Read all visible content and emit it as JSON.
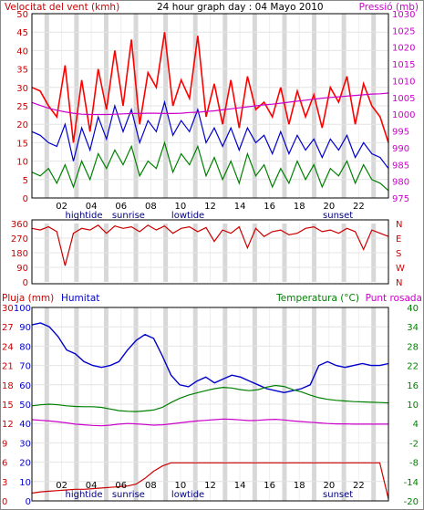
{
  "chart_data": [
    {
      "type": "line",
      "title": "24 hour graph day : 04 Mayo 2010",
      "ylabel": "Velocitat del vent (kmh)",
      "y2label": "Pressió (mb)",
      "ylim": [
        0,
        50
      ],
      "y2lim": [
        975,
        1030
      ],
      "yticks": [
        "0",
        "5",
        "10",
        "15",
        "20",
        "25",
        "30",
        "35",
        "40",
        "45",
        "50"
      ],
      "y2ticks": [
        "975",
        "980",
        "985",
        "990",
        "995",
        "1000",
        "1005",
        "1010",
        "1015",
        "1020",
        "1025",
        "1030"
      ],
      "xticks": [
        "02",
        "04",
        "06",
        "08",
        "10",
        "12",
        "14",
        "16",
        "18",
        "20",
        "22",
        ""
      ],
      "annotations": [
        {
          "text": "hightide",
          "hour": 3.5
        },
        {
          "text": "sunrise",
          "hour": 6.5
        },
        {
          "text": "lowtide",
          "hour": 10.5
        },
        {
          "text": "sunset",
          "hour": 20.6
        }
      ],
      "colors": {
        "gust": "#ff0000",
        "avg": "#0000cc",
        "min": "#008000",
        "pressure": "#cc00cc"
      },
      "series": [
        {
          "key": "gust",
          "values": [
            30,
            29,
            25,
            22,
            36,
            15,
            32,
            18,
            35,
            24,
            40,
            25,
            43,
            20,
            34,
            30,
            45,
            25,
            32,
            27,
            44,
            22,
            31,
            20,
            32,
            19,
            33,
            24,
            26,
            22,
            30,
            20,
            29,
            22,
            28,
            19,
            30,
            26,
            33,
            20,
            31,
            25,
            22,
            15
          ]
        },
        {
          "key": "avg",
          "values": [
            18,
            17,
            15,
            14,
            20,
            10,
            19,
            13,
            22,
            16,
            25,
            18,
            24,
            15,
            21,
            18,
            26,
            17,
            21,
            18,
            24,
            15,
            19,
            14,
            19,
            13,
            19,
            15,
            17,
            12,
            18,
            12,
            17,
            13,
            16,
            11,
            16,
            13,
            17,
            11,
            15,
            12,
            11,
            8
          ]
        },
        {
          "key": "min",
          "values": [
            7,
            6,
            8,
            4,
            9,
            3,
            10,
            5,
            12,
            8,
            13,
            9,
            14,
            6,
            10,
            8,
            15,
            7,
            12,
            9,
            14,
            6,
            11,
            5,
            10,
            4,
            12,
            6,
            9,
            3,
            8,
            4,
            10,
            5,
            9,
            3,
            8,
            6,
            10,
            4,
            9,
            5,
            4,
            2
          ]
        },
        {
          "key": "pressure",
          "values": [
            1003.5,
            1002.6,
            1001.8,
            1001.2,
            1000.7,
            1000.3,
            1000.0,
            999.9,
            999.9,
            999.9,
            1000.0,
            1000.1,
            1000.2,
            1000.2,
            1000.3,
            1000.3,
            1000.2,
            1000.2,
            1000.3,
            1000.5,
            1000.6,
            1000.8,
            1001.0,
            1001.3,
            1001.6,
            1001.9,
            1002.2,
            1002.5,
            1002.8,
            1003.0,
            1003.3,
            1003.6,
            1003.9,
            1004.2,
            1004.5,
            1004.8,
            1005.0,
            1005.2,
            1005.4,
            1005.6,
            1005.8,
            1006.0,
            1006.1,
            1006.3
          ]
        }
      ]
    },
    {
      "type": "line",
      "ylim": [
        0,
        360
      ],
      "yticks": [
        "0",
        "90",
        "180",
        "270",
        "360"
      ],
      "y2ticks": [
        "N",
        "W",
        "S",
        "E",
        "N"
      ],
      "colors": {
        "dir": "#cc0000"
      },
      "series": [
        {
          "key": "dir",
          "values": [
            330,
            320,
            340,
            310,
            100,
            300,
            330,
            320,
            350,
            300,
            345,
            330,
            340,
            310,
            350,
            320,
            345,
            300,
            330,
            340,
            310,
            335,
            250,
            320,
            300,
            340,
            210,
            330,
            280,
            310,
            320,
            290,
            300,
            330,
            340,
            310,
            320,
            300,
            330,
            310,
            200,
            320,
            300,
            280
          ]
        }
      ]
    },
    {
      "type": "line",
      "ylabel": "Pluja (mm)",
      "humidity_label": "Humitat",
      "y2label": "Temperatura (°C)",
      "dewpoint_label": "Punt rosada",
      "ylim": [
        0,
        100
      ],
      "rainlim": [
        0,
        30
      ],
      "y2lim": [
        -20,
        40
      ],
      "yticks": [
        "0",
        "10",
        "20",
        "30",
        "40",
        "50",
        "60",
        "70",
        "80",
        "90",
        "100"
      ],
      "rainticks": [
        "0",
        "3",
        "6",
        "9",
        "12",
        "15",
        "18",
        "21",
        "24",
        "27",
        "30"
      ],
      "y2ticks": [
        "-20",
        "-14",
        "-8",
        "-2",
        "4",
        "10",
        "16",
        "22",
        "28",
        "34",
        "40"
      ],
      "xticks": [
        "02",
        "04",
        "06",
        "08",
        "10",
        "12",
        "14",
        "16",
        "18",
        "20",
        "22",
        ""
      ],
      "annotations": [
        {
          "text": "hightide",
          "hour": 3.5
        },
        {
          "text": "sunrise",
          "hour": 6.5
        },
        {
          "text": "lowtide",
          "hour": 10.5
        },
        {
          "text": "sunset",
          "hour": 20.6
        }
      ],
      "colors": {
        "humidity": "#0000cc",
        "temperature": "#008000",
        "dewpoint": "#cc00cc",
        "rain": "#cc0000"
      },
      "series": [
        {
          "key": "humidity",
          "values": [
            91,
            92,
            90,
            85,
            78,
            76,
            72,
            70,
            69,
            70,
            72,
            78,
            83,
            86,
            84,
            75,
            65,
            60,
            59,
            62,
            64,
            61,
            63,
            65,
            64,
            62,
            60,
            58,
            57,
            56,
            57,
            58,
            60,
            70,
            72,
            70,
            69,
            70,
            71,
            70,
            70,
            71
          ]
        },
        {
          "key": "temperature",
          "values": [
            9.5,
            9.8,
            10.0,
            9.8,
            9.5,
            9.3,
            9.2,
            9.2,
            9.0,
            8.5,
            8.0,
            7.8,
            7.7,
            7.9,
            8.2,
            9.0,
            10.5,
            11.8,
            12.8,
            13.5,
            14.2,
            14.8,
            15.2,
            15.0,
            14.5,
            14.2,
            14.5,
            15.3,
            15.8,
            15.5,
            14.5,
            13.8,
            12.8,
            12.0,
            11.5,
            11.2,
            11.0,
            10.8,
            10.7,
            10.6,
            10.5,
            10.4
          ]
        },
        {
          "key": "dewpoint",
          "values": [
            5.2,
            5.0,
            4.8,
            4.5,
            4.2,
            3.8,
            3.6,
            3.4,
            3.3,
            3.5,
            3.8,
            4.0,
            3.9,
            3.7,
            3.5,
            3.6,
            3.9,
            4.2,
            4.5,
            4.8,
            5.0,
            5.2,
            5.4,
            5.3,
            5.1,
            4.9,
            5.0,
            5.2,
            5.3,
            5.1,
            4.8,
            4.6,
            4.4,
            4.2,
            4.0,
            3.9,
            3.9,
            3.8,
            3.8,
            3.8,
            3.8,
            3.8
          ]
        },
        {
          "key": "rain",
          "values": [
            1.2,
            1.4,
            1.5,
            1.6,
            1.7,
            1.8,
            1.8,
            1.9,
            2.0,
            2.1,
            2.2,
            2.3,
            2.6,
            3.5,
            4.6,
            5.4,
            5.9,
            5.9,
            5.9,
            5.9,
            5.9,
            5.9,
            5.9,
            5.9,
            5.9,
            5.9,
            5.9,
            5.9,
            5.9,
            5.9,
            5.9,
            5.9,
            5.9,
            5.9,
            5.9,
            5.9,
            5.9,
            5.9,
            5.9,
            5.9,
            5.9,
            0.3
          ]
        }
      ]
    }
  ]
}
